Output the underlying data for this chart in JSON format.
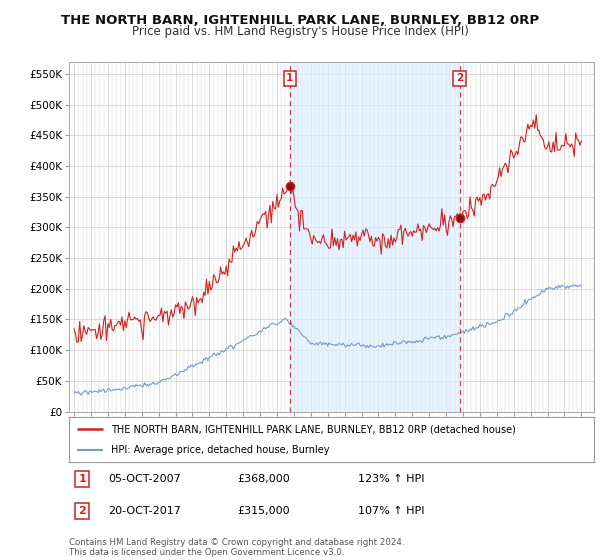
{
  "title": "THE NORTH BARN, IGHTENHILL PARK LANE, BURNLEY, BB12 0RP",
  "subtitle": "Price paid vs. HM Land Registry's House Price Index (HPI)",
  "title_fontsize": 9.5,
  "subtitle_fontsize": 8.5,
  "background_color": "#ffffff",
  "plot_bg_color": "#ffffff",
  "grid_color": "#cccccc",
  "red_color": "#cc2222",
  "blue_color": "#7799cc",
  "shade_color": "#ddeeff",
  "dashed_color": "#cc2222",
  "ylim": [
    0,
    570000
  ],
  "yticks": [
    0,
    50000,
    100000,
    150000,
    200000,
    250000,
    300000,
    350000,
    400000,
    450000,
    500000,
    550000
  ],
  "ytick_labels": [
    "£0",
    "£50K",
    "£100K",
    "£150K",
    "£200K",
    "£250K",
    "£300K",
    "£350K",
    "£400K",
    "£450K",
    "£500K",
    "£550K"
  ],
  "sale1_x": 2007.76,
  "sale2_x": 2017.8,
  "sale1_y": 368000,
  "sale2_y": 315000,
  "legend_line1": "THE NORTH BARN, IGHTENHILL PARK LANE, BURNLEY, BB12 0RP (detached house)",
  "legend_line2": "HPI: Average price, detached house, Burnley",
  "footnote": "Contains HM Land Registry data © Crown copyright and database right 2024.\nThis data is licensed under the Open Government Licence v3.0.",
  "sale_info": [
    {
      "num": "1",
      "date": "05-OCT-2007",
      "price": "£368,000",
      "hpi": "123% ↑ HPI"
    },
    {
      "num": "2",
      "date": "20-OCT-2017",
      "price": "£315,000",
      "hpi": "107% ↑ HPI"
    }
  ],
  "xlim_left": 1994.7,
  "xlim_right": 2025.3
}
